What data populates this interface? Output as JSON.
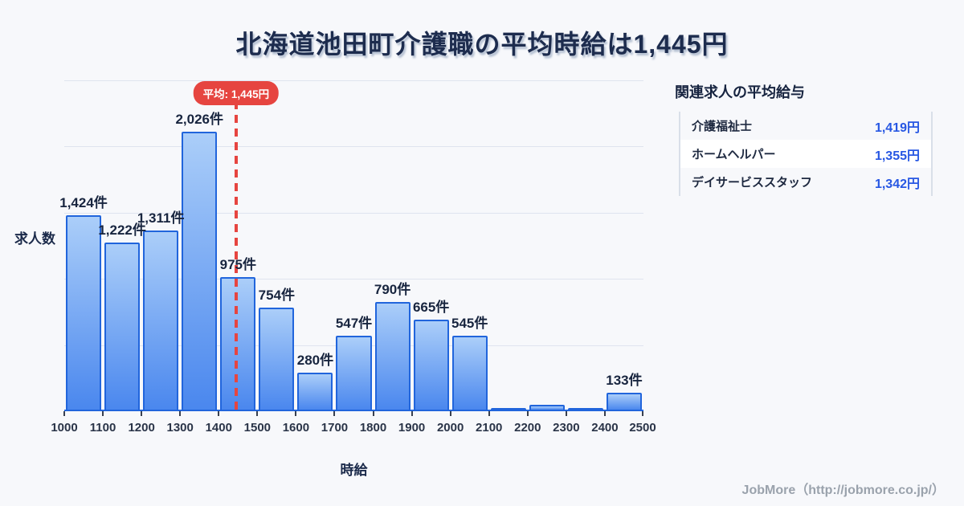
{
  "page": {
    "title": "北海道池田町介護職の平均時給は1,445円",
    "footer": "JobMore（http://jobmore.co.jp/）"
  },
  "chart_data": {
    "type": "bar",
    "title": "北海道池田町介護職の平均時給は1,445円",
    "xlabel": "時給",
    "ylabel": "求人数",
    "bin_edges": [
      1000,
      1100,
      1200,
      1300,
      1400,
      1500,
      1600,
      1700,
      1800,
      1900,
      2000,
      2100,
      2200,
      2300,
      2400,
      2500
    ],
    "x_tick_labels": [
      "1000",
      "1100",
      "1200",
      "1300",
      "1400",
      "1500",
      "1600",
      "1700",
      "1800",
      "1900",
      "2000",
      "2100",
      "2200",
      "2300",
      "2400",
      "2500"
    ],
    "values": [
      1424,
      1222,
      1311,
      2026,
      975,
      754,
      280,
      547,
      790,
      665,
      545,
      15,
      45,
      15,
      133
    ],
    "bar_labels": [
      "1,424件",
      "1,222件",
      "1,311件",
      "2,026件",
      "975件",
      "754件",
      "280件",
      "547件",
      "790件",
      "665件",
      "545件",
      "",
      "",
      "",
      "133件"
    ],
    "ylim": [
      0,
      2400
    ],
    "grid": "horizontal",
    "gridline_count": 5,
    "legend": "none",
    "average_line": {
      "value": 1445,
      "label": "平均: 1,445円",
      "color": "#e64540"
    },
    "bar_style": {
      "border": "#2165dc",
      "gradient_top": "#abcef9",
      "gradient_bottom": "#4a87ee"
    }
  },
  "side_panel": {
    "title": "関連求人の平均給与",
    "rows": [
      {
        "label": "介護福祉士",
        "value": "1,419円"
      },
      {
        "label": "ホームヘルパー",
        "value": "1,355円"
      },
      {
        "label": "デイサービススタッフ",
        "value": "1,342円"
      }
    ],
    "value_color": "#2757e3"
  }
}
